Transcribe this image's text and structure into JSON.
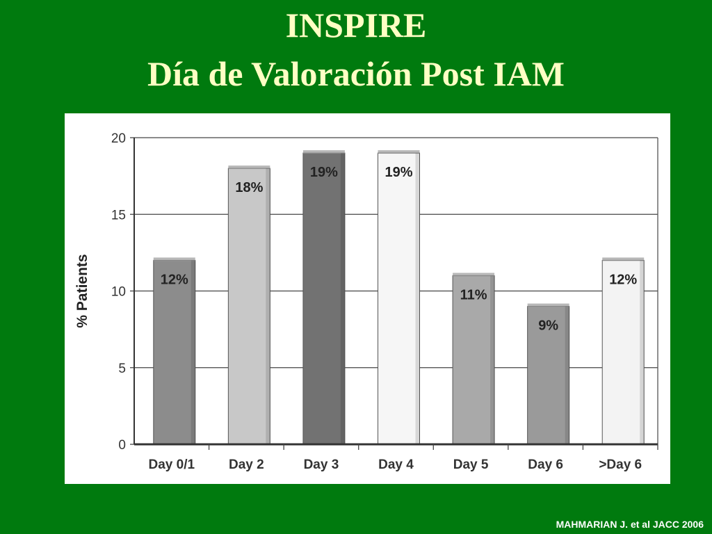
{
  "slide": {
    "title_line1": "INSPIRE",
    "title_line2": "Día de Valoración Post IAM",
    "citation": "MAHMARIAN J. et al JACC 2006",
    "background_color": "#007a0e",
    "title_color": "#ffffc4"
  },
  "chart_data": {
    "type": "bar",
    "title": "",
    "xlabel": "",
    "ylabel": "% Patients",
    "ylim": [
      0,
      20
    ],
    "yticks": [
      0,
      5,
      10,
      15,
      20
    ],
    "grid": true,
    "categories": [
      "Day 0/1",
      "Day 2",
      "Day 3",
      "Day 4",
      "Day 5",
      "Day 6",
      ">Day 6"
    ],
    "values": [
      12,
      18,
      19,
      19,
      11,
      9,
      12
    ],
    "value_labels": [
      "12%",
      "18%",
      "19%",
      "19%",
      "11%",
      "9%",
      "12%"
    ],
    "bar_colors": [
      "#8c8c8c",
      "#c8c8c8",
      "#727272",
      "#f6f6f6",
      "#a9a9a9",
      "#9a9a9a",
      "#f3f3f3"
    ]
  }
}
